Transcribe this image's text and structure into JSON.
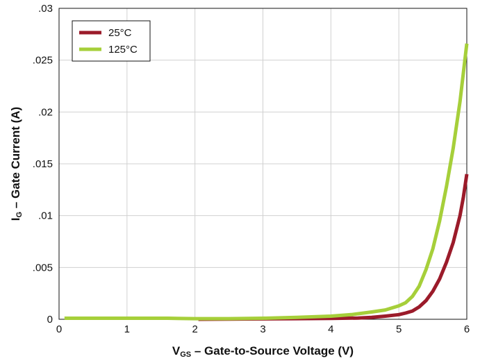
{
  "chart_data": {
    "type": "line",
    "xlabel": {
      "main": "V",
      "sub": "GS",
      "rest": " – Gate-to-Source Voltage (V)"
    },
    "ylabel": {
      "main": "I",
      "sub": "G",
      "rest": " – Gate Current (A)"
    },
    "xlim": [
      0,
      6
    ],
    "ylim": [
      0,
      0.03
    ],
    "x_ticks": [
      {
        "value": 0,
        "label": "0"
      },
      {
        "value": 1,
        "label": "1"
      },
      {
        "value": 2,
        "label": "2"
      },
      {
        "value": 3,
        "label": "3"
      },
      {
        "value": 4,
        "label": "4"
      },
      {
        "value": 5,
        "label": "5"
      },
      {
        "value": 6,
        "label": "6"
      }
    ],
    "y_ticks": [
      {
        "value": 0,
        "label": "0"
      },
      {
        "value": 0.005,
        "label": ".005"
      },
      {
        "value": 0.01,
        "label": ".01"
      },
      {
        "value": 0.015,
        "label": ".015"
      },
      {
        "value": 0.02,
        "label": ".02"
      },
      {
        "value": 0.025,
        "label": ".025"
      },
      {
        "value": 0.03,
        "label": ".03"
      }
    ],
    "grid": true,
    "legend_position": "top-left",
    "series": [
      {
        "name": "25°C",
        "color": "#9b1b2a",
        "points": [
          [
            2.05,
            0.0
          ],
          [
            2.5,
            2e-05
          ],
          [
            3.0,
            4e-05
          ],
          [
            3.5,
            6e-05
          ],
          [
            4.0,
            8e-05
          ],
          [
            4.4,
            0.00012
          ],
          [
            4.6,
            0.00018
          ],
          [
            4.8,
            0.0003
          ],
          [
            5.0,
            0.00045
          ],
          [
            5.1,
            0.0006
          ],
          [
            5.2,
            0.0008
          ],
          [
            5.3,
            0.0012
          ],
          [
            5.4,
            0.0018
          ],
          [
            5.5,
            0.0027
          ],
          [
            5.6,
            0.0039
          ],
          [
            5.7,
            0.0055
          ],
          [
            5.8,
            0.0074
          ],
          [
            5.9,
            0.01
          ],
          [
            5.95,
            0.0118
          ],
          [
            6.0,
            0.014
          ]
        ]
      },
      {
        "name": "125°C",
        "color": "#a6cf3a",
        "points": [
          [
            0.08,
            0.0001
          ],
          [
            1.0,
            0.0001
          ],
          [
            1.6,
            0.0001
          ],
          [
            2.0,
            6e-05
          ],
          [
            2.5,
            6e-05
          ],
          [
            3.0,
            0.0001
          ],
          [
            3.5,
            0.00018
          ],
          [
            4.0,
            0.0003
          ],
          [
            4.3,
            0.00045
          ],
          [
            4.6,
            0.0007
          ],
          [
            4.8,
            0.0009
          ],
          [
            5.0,
            0.0013
          ],
          [
            5.1,
            0.0016
          ],
          [
            5.2,
            0.0022
          ],
          [
            5.3,
            0.0032
          ],
          [
            5.4,
            0.0048
          ],
          [
            5.5,
            0.0068
          ],
          [
            5.6,
            0.0095
          ],
          [
            5.7,
            0.0128
          ],
          [
            5.8,
            0.0165
          ],
          [
            5.9,
            0.021
          ],
          [
            5.95,
            0.0238
          ],
          [
            6.0,
            0.0266
          ]
        ]
      }
    ]
  }
}
